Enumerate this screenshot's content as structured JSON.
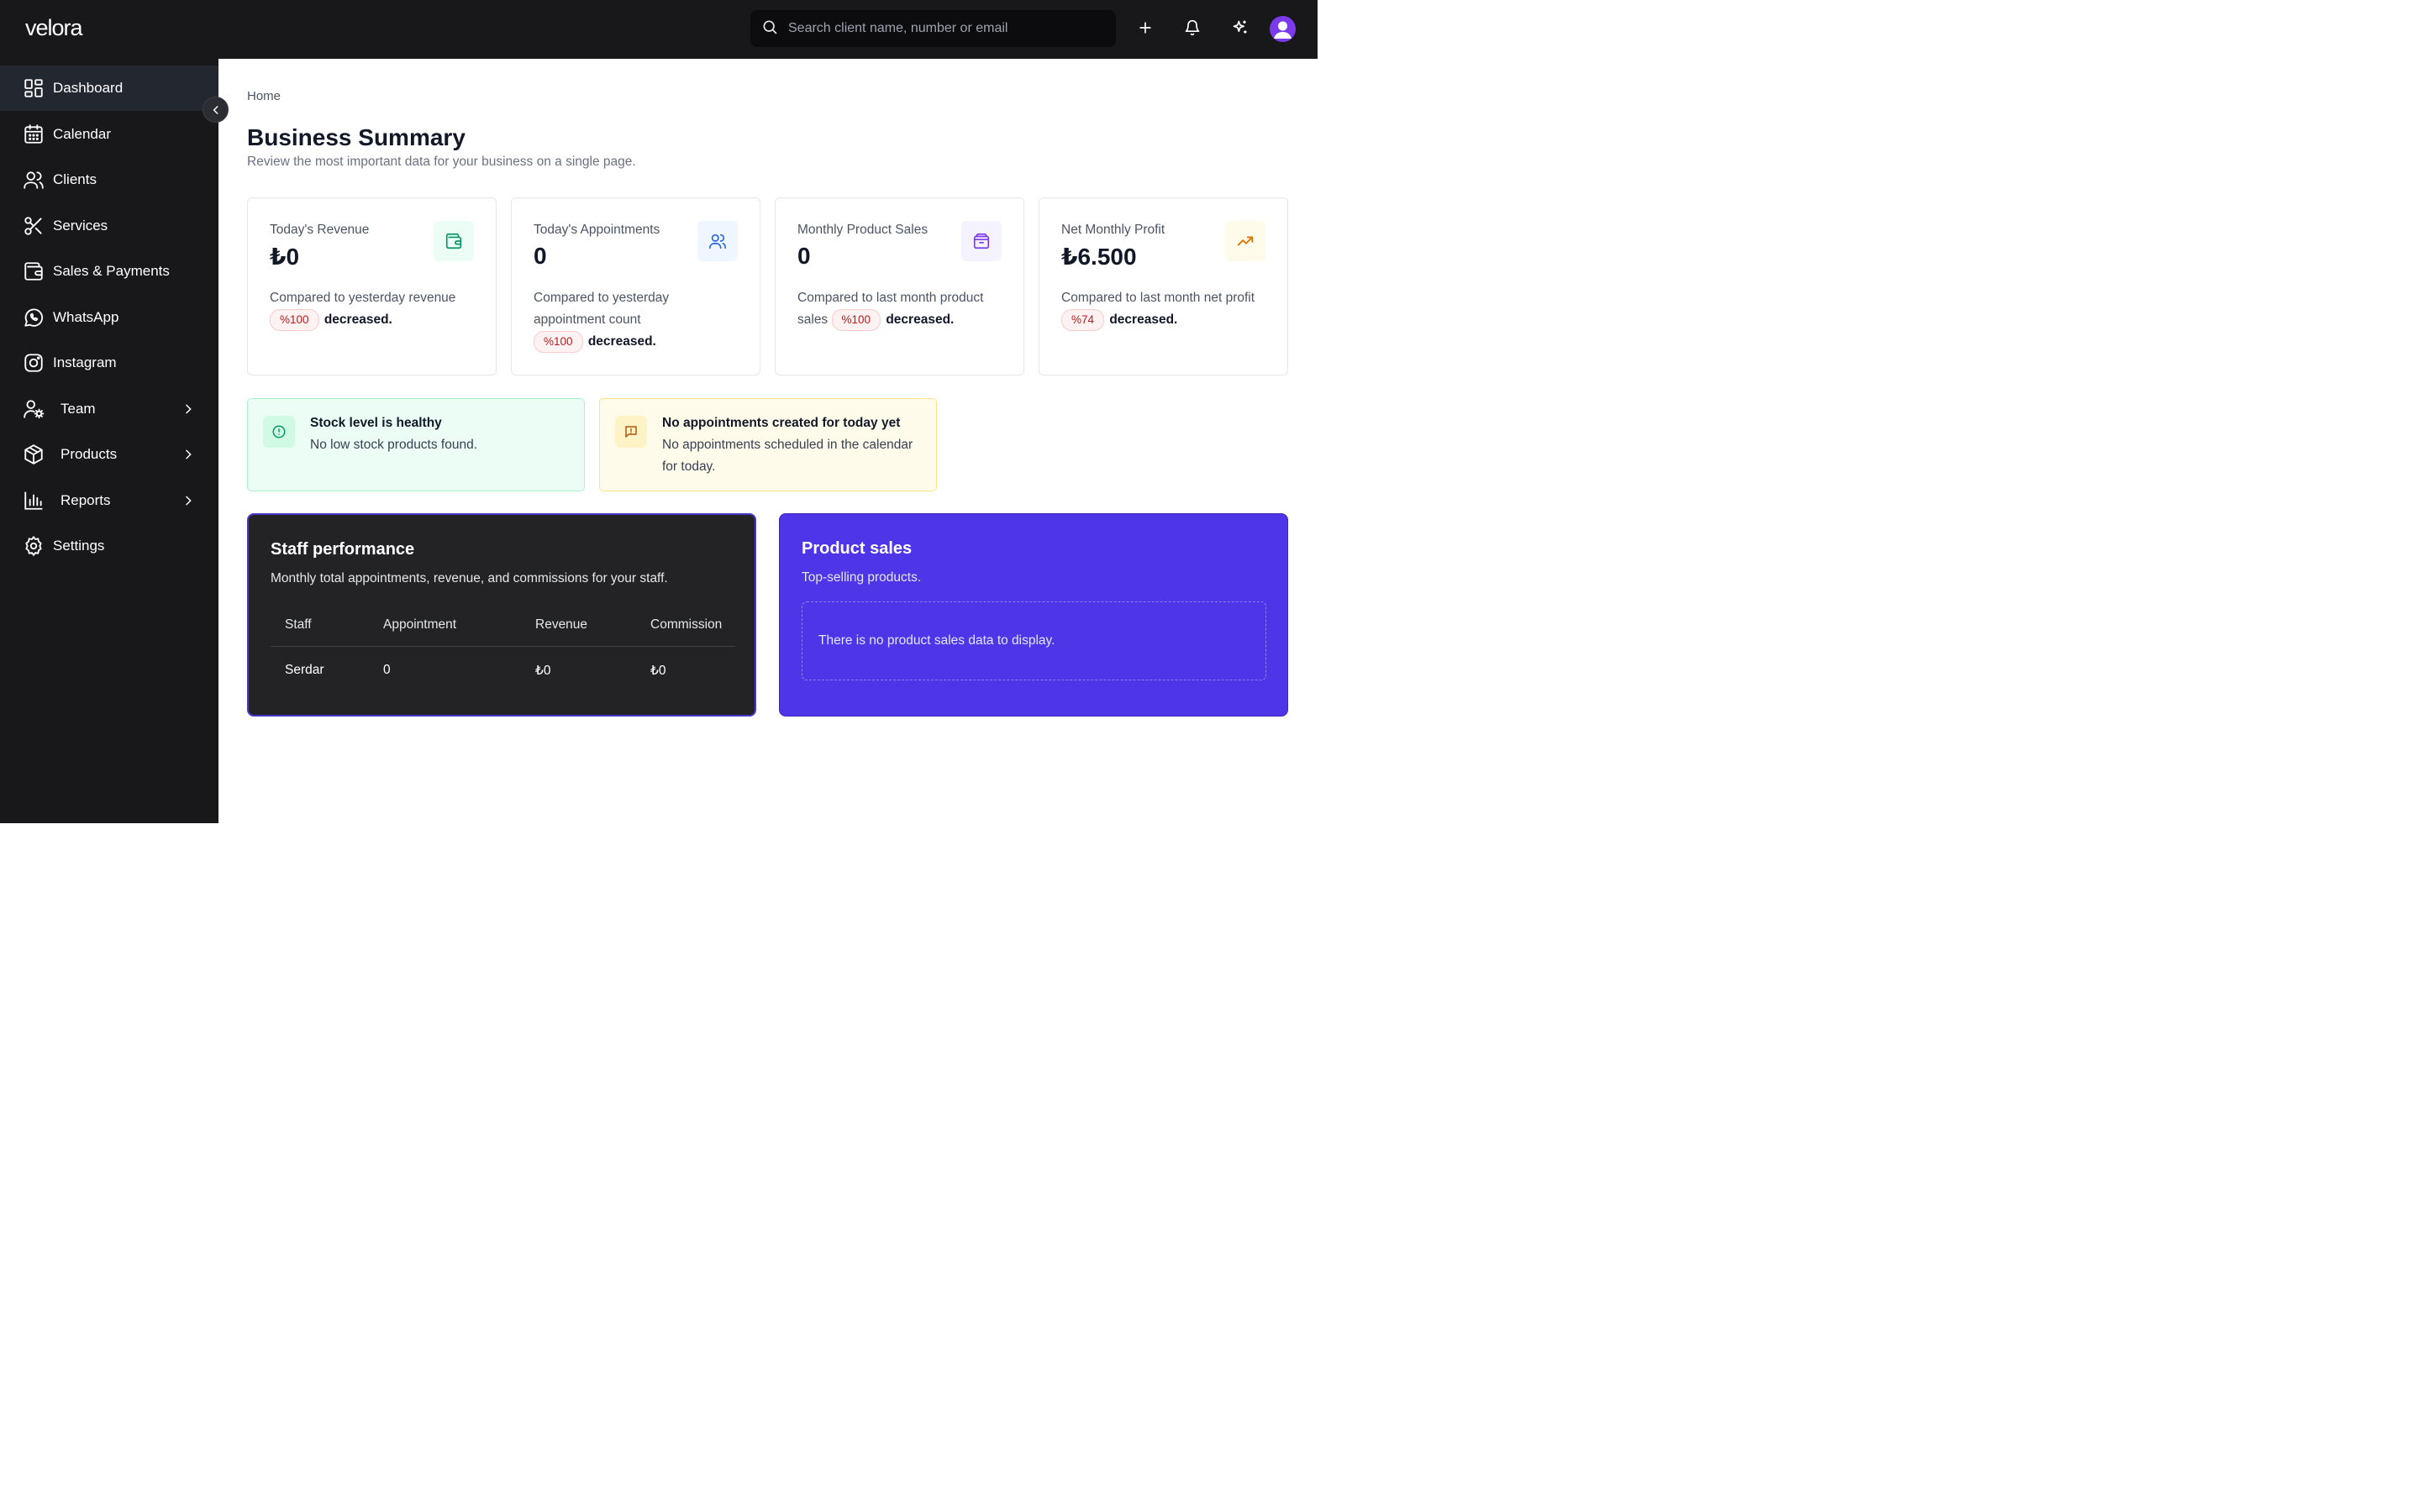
{
  "app": {
    "logo": "velora"
  },
  "search": {
    "placeholder": "Search client name, number or email"
  },
  "sidebar": {
    "items": [
      {
        "label": "Dashboard",
        "icon": "dashboard-icon"
      },
      {
        "label": "Calendar",
        "icon": "calendar-icon"
      },
      {
        "label": "Clients",
        "icon": "users-icon"
      },
      {
        "label": "Services",
        "icon": "scissors-icon"
      },
      {
        "label": "Sales & Payments",
        "icon": "wallet-icon"
      },
      {
        "label": "WhatsApp",
        "icon": "whatsapp-icon"
      },
      {
        "label": "Instagram",
        "icon": "instagram-icon"
      },
      {
        "label": "Team",
        "icon": "user-gear-icon"
      },
      {
        "label": "Products",
        "icon": "package-icon"
      },
      {
        "label": "Reports",
        "icon": "bar-chart-icon"
      },
      {
        "label": "Settings",
        "icon": "gear-icon"
      }
    ]
  },
  "main": {
    "breadcrumb": "Home",
    "title": "Business Summary",
    "subtitle": "Review the most important data for your business on a single page."
  },
  "stats": [
    {
      "label": "Today's Revenue",
      "value": "₺0",
      "desc": "Compared to yesterday revenue",
      "pill": "%100",
      "trend": "decreased.",
      "icon": "wallet-icon",
      "color": "#059669"
    },
    {
      "label": "Today's Appointments",
      "value": "0",
      "desc": "Compared to yesterday appointment count",
      "pill": "%100",
      "trend": "decreased.",
      "icon": "users-icon",
      "color": "#2563eb"
    },
    {
      "label": "Monthly Product Sales",
      "value": "0",
      "desc": "Compared to last month product sales",
      "pill": "%100",
      "trend": "decreased.",
      "icon": "package-icon",
      "color": "#7c3aed"
    },
    {
      "label": "Net Monthly Profit",
      "value": "₺6.500",
      "desc": "Compared to last month net profit",
      "pill": "%74",
      "trend": "decreased.",
      "icon": "trending-up-icon",
      "color": "#d97706"
    }
  ],
  "alerts": {
    "stock": {
      "title": "Stock level is healthy",
      "desc": "No low stock products found."
    },
    "appointments": {
      "title": "No appointments created for today yet",
      "desc": "No appointments scheduled in the calendar for today."
    }
  },
  "staff_performance": {
    "title": "Staff performance",
    "subtitle": "Monthly total appointments, revenue, and commissions for your staff.",
    "columns": [
      "Staff",
      "Appointment",
      "Revenue",
      "Commission"
    ],
    "rows": [
      [
        "Serdar",
        "0",
        "₺0",
        "₺0"
      ]
    ]
  },
  "product_sales": {
    "title": "Product sales",
    "subtitle": "Top-selling products.",
    "empty": "There is no product sales data to display."
  }
}
